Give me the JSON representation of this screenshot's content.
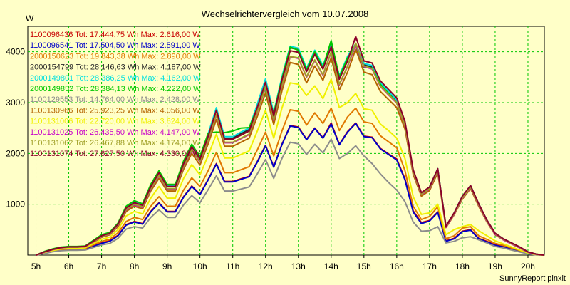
{
  "chart_data": {
    "type": "line",
    "title": "Wechselrichtervergleich vom 10.07.2008",
    "ylabel": "W",
    "xlabel": "",
    "credit": "SunnyReport pinxit",
    "grid": true,
    "legend_position": "top-left",
    "xlim": [
      4.75,
      20.5
    ],
    "ylim": [
      0,
      4500
    ],
    "x_ticks": [
      5,
      6,
      7,
      8,
      9,
      10,
      11,
      12,
      13,
      14,
      15,
      16,
      17,
      18,
      19,
      20
    ],
    "x_tick_labels": [
      "5h",
      "6h",
      "7h",
      "8h",
      "9h",
      "10h",
      "11h",
      "12h",
      "13h",
      "14h",
      "15h",
      "16h",
      "17h",
      "18h",
      "19h",
      "20h"
    ],
    "y_ticks": [
      1000,
      2000,
      3000,
      4000
    ],
    "y_tick_labels": [
      "1000",
      "2000",
      "3000",
      "4000"
    ],
    "x": [
      5.0,
      5.25,
      5.5,
      5.75,
      6.0,
      6.25,
      6.5,
      6.75,
      7.0,
      7.25,
      7.5,
      7.75,
      8.0,
      8.25,
      8.5,
      8.75,
      9.0,
      9.25,
      9.5,
      9.75,
      10.0,
      10.25,
      10.5,
      10.75,
      11.0,
      11.25,
      11.5,
      11.75,
      12.0,
      12.25,
      12.5,
      12.75,
      13.0,
      13.25,
      13.5,
      13.75,
      14.0,
      14.25,
      14.5,
      14.75,
      15.0,
      15.25,
      15.5,
      15.75,
      16.0,
      16.25,
      16.5,
      16.75,
      17.0,
      17.25,
      17.5,
      17.75,
      18.0,
      18.25,
      18.5,
      18.75,
      19.0,
      19.25,
      19.5,
      19.75,
      20.0,
      20.25,
      20.5
    ],
    "series": [
      {
        "name": "1100096436 Tot: 17.444,75 Wh Max: 2.616,00 W",
        "color": "#c80000",
        "values": [
          0,
          40,
          80,
          100,
          110,
          110,
          120,
          180,
          240,
          280,
          390,
          600,
          660,
          620,
          860,
          1030,
          860,
          860,
          1150,
          1360,
          1200,
          1490,
          1800,
          1450,
          1450,
          1500,
          1550,
          1840,
          2160,
          1740,
          2180,
          2550,
          2520,
          2280,
          2500,
          2310,
          2600,
          2180,
          2430,
          2600,
          2340,
          2320,
          2100,
          1990,
          1890,
          1500,
          870,
          640,
          680,
          850,
          280,
          330,
          470,
          500,
          330,
          270,
          200,
          170,
          120,
          80,
          30,
          10,
          0
        ]
      },
      {
        "name": "1100096541 Tot: 17.504,50 Wh Max: 2.591,00 W",
        "color": "#0000c8",
        "values": [
          0,
          35,
          75,
          95,
          105,
          105,
          115,
          170,
          230,
          270,
          380,
          590,
          650,
          610,
          850,
          1020,
          850,
          850,
          1140,
          1350,
          1190,
          1480,
          1790,
          1440,
          1440,
          1490,
          1540,
          1830,
          2150,
          1730,
          2170,
          2540,
          2510,
          2270,
          2490,
          2300,
          2580,
          2170,
          2420,
          2590,
          2330,
          2310,
          2090,
          1980,
          1870,
          1480,
          850,
          620,
          670,
          840,
          270,
          320,
          460,
          490,
          320,
          260,
          190,
          160,
          110,
          70,
          25,
          5,
          0
        ]
      },
      {
        "name": "2000150623 Tot: 19.843,38 Wh Max: 2.890,00 W",
        "color": "#e07800",
        "values": [
          0,
          45,
          85,
          110,
          120,
          120,
          130,
          200,
          270,
          310,
          440,
          660,
          740,
          700,
          960,
          1150,
          960,
          960,
          1280,
          1520,
          1350,
          1660,
          2020,
          1620,
          1620,
          1680,
          1740,
          2070,
          2420,
          1950,
          2440,
          2860,
          2830,
          2560,
          2800,
          2590,
          2890,
          2450,
          2720,
          2890,
          2620,
          2590,
          2350,
          2230,
          2110,
          1660,
          960,
          700,
          760,
          950,
          320,
          380,
          530,
          560,
          380,
          310,
          230,
          190,
          140,
          90,
          35,
          10,
          0
        ]
      },
      {
        "name": "2000154799 Tot: 28.146,63 Wh Max: 4.187,00 W",
        "color": "#282828",
        "values": [
          0,
          60,
          110,
          145,
          160,
          160,
          170,
          270,
          380,
          430,
          610,
          930,
          1040,
          980,
          1360,
          1630,
          1360,
          1360,
          1820,
          2150,
          1910,
          2360,
          2870,
          2300,
          2300,
          2390,
          2470,
          2940,
          3440,
          2770,
          3480,
          4080,
          4040,
          3650,
          4000,
          3700,
          4180,
          3500,
          3880,
          4140,
          3740,
          3700,
          3360,
          3190,
          3020,
          2580,
          1650,
          1200,
          1320,
          1680,
          560,
          820,
          1150,
          1360,
          1000,
          680,
          420,
          310,
          230,
          150,
          60,
          20,
          0
        ]
      },
      {
        "name": "2000149801 Tot: 28.386,25 Wh Max: 4.162,00 W",
        "color": "#00e0e0",
        "values": [
          0,
          65,
          115,
          150,
          165,
          165,
          175,
          280,
          390,
          440,
          620,
          950,
          1060,
          1000,
          1380,
          1650,
          1380,
          1380,
          1840,
          2170,
          1930,
          2390,
          2900,
          2330,
          2330,
          2420,
          2500,
          2970,
          3470,
          2800,
          3510,
          4110,
          4070,
          3680,
          4030,
          3730,
          4160,
          3530,
          3910,
          4160,
          3770,
          3730,
          3390,
          3220,
          3050,
          2600,
          1670,
          1220,
          1340,
          1700,
          570,
          830,
          1160,
          1370,
          1010,
          690,
          430,
          320,
          240,
          160,
          65,
          20,
          0
        ]
      },
      {
        "name": "2000149852 Tot: 28.384,13 Wh Max: 4.222,00 W",
        "color": "#00c800",
        "values": [
          0,
          70,
          120,
          155,
          170,
          170,
          180,
          290,
          400,
          450,
          630,
          960,
          1070,
          1010,
          1390,
          1660,
          1390,
          1390,
          1850,
          2180,
          1940,
          2400,
          2420,
          2410,
          2440,
          2500,
          2510,
          2900,
          3300,
          2780,
          3470,
          4090,
          4030,
          3650,
          4000,
          3690,
          4220,
          3500,
          3880,
          4120,
          3700,
          3680,
          3360,
          3180,
          3000,
          2560,
          1640,
          1200,
          1320,
          1680,
          550,
          820,
          1130,
          1340,
          990,
          670,
          420,
          310,
          230,
          150,
          60,
          20,
          0
        ]
      },
      {
        "name": "1100129553 Tot: 14.764,00 Wh Max: 2.428,00 W",
        "color": "#8c8c8c",
        "values": [
          0,
          30,
          65,
          85,
          95,
          95,
          100,
          150,
          200,
          230,
          330,
          510,
          560,
          530,
          740,
          890,
          740,
          740,
          990,
          1170,
          1030,
          1290,
          1560,
          1260,
          1260,
          1300,
          1340,
          1600,
          1880,
          1510,
          1900,
          2220,
          2190,
          1980,
          2180,
          2010,
          2280,
          1900,
          2000,
          2150,
          1950,
          1800,
          1600,
          1430,
          1280,
          1050,
          650,
          470,
          480,
          560,
          240,
          270,
          340,
          360,
          300,
          240,
          170,
          140,
          100,
          60,
          25,
          5,
          0
        ]
      },
      {
        "name": "1100130966 Tot: 25.923,25 Wh Max: 4.056,00 W",
        "color": "#b46400",
        "values": [
          0,
          55,
          100,
          135,
          150,
          150,
          160,
          250,
          350,
          400,
          560,
          860,
          960,
          910,
          1260,
          1510,
          1260,
          1260,
          1690,
          2000,
          1770,
          2190,
          2670,
          2140,
          2140,
          2220,
          2300,
          2730,
          3190,
          2570,
          3230,
          3790,
          3750,
          3390,
          3720,
          3440,
          3880,
          3250,
          3600,
          4050,
          3600,
          3550,
          3220,
          3060,
          2900,
          2480,
          1590,
          1160,
          1270,
          1620,
          540,
          790,
          1100,
          1310,
          960,
          650,
          400,
          300,
          220,
          140,
          55,
          15,
          0
        ]
      },
      {
        "name": "1100131006 Tot: 22.720,00 Wh Max: 3.624,00 W",
        "color": "#f0f000",
        "values": [
          0,
          50,
          90,
          120,
          135,
          135,
          145,
          225,
          310,
          355,
          500,
          770,
          860,
          810,
          1120,
          1350,
          1120,
          1120,
          1510,
          1780,
          1580,
          1960,
          2380,
          1910,
          1910,
          1980,
          2050,
          2440,
          2850,
          2300,
          2890,
          3390,
          3360,
          3140,
          3330,
          3080,
          3460,
          2900,
          3000,
          3180,
          2880,
          2850,
          2580,
          2450,
          2300,
          1900,
          1150,
          800,
          830,
          1000,
          400,
          500,
          560,
          600,
          480,
          380,
          280,
          220,
          160,
          100,
          40,
          10,
          0
        ]
      },
      {
        "name": "1100131025 Tot: 26.435,50 Wh Max: 4.147,00 W",
        "color": "#c800c8",
        "values": [
          0,
          58,
          105,
          140,
          155,
          155,
          165,
          260,
          360,
          410,
          580,
          890,
          990,
          940,
          1300,
          1560,
          1300,
          1300,
          1740,
          2060,
          1830,
          2260,
          2760,
          2210,
          2210,
          2290,
          2370,
          2820,
          3290,
          2650,
          3330,
          3900,
          3870,
          3500,
          3830,
          3540,
          3990,
          3350,
          3710,
          4140,
          3710,
          3660,
          3320,
          3150,
          2990,
          2550,
          1630,
          1190,
          1300,
          1660,
          550,
          800,
          1120,
          1330,
          980,
          660,
          410,
          300,
          220,
          140,
          55,
          15,
          0
        ]
      },
      {
        "name": "1100131062 Tot: 26.467,88 Wh Max: 4.174,00 W",
        "color": "#a0a028",
        "values": [
          0,
          60,
          108,
          142,
          158,
          158,
          168,
          265,
          365,
          415,
          590,
          900,
          1000,
          950,
          1310,
          1570,
          1310,
          1310,
          1750,
          2070,
          1840,
          2270,
          2770,
          2220,
          2220,
          2300,
          2380,
          2830,
          3300,
          2660,
          3340,
          3910,
          3880,
          3510,
          3840,
          3550,
          4000,
          3360,
          3720,
          4170,
          3720,
          3670,
          3330,
          3160,
          3000,
          2560,
          1640,
          1200,
          1310,
          1670,
          560,
          810,
          1130,
          1340,
          990,
          670,
          420,
          310,
          230,
          150,
          60,
          20,
          0
        ]
      },
      {
        "name": "1100131074 Tot: 27.627,50 Wh Max: 4.330,00 W",
        "color": "#8c0028",
        "values": [
          0,
          62,
          112,
          147,
          163,
          163,
          173,
          275,
          380,
          430,
          610,
          930,
          1030,
          980,
          1350,
          1620,
          1350,
          1350,
          1800,
          2130,
          1890,
          2340,
          2850,
          2280,
          2280,
          2360,
          2440,
          2910,
          3400,
          2740,
          3440,
          4020,
          3990,
          3610,
          3950,
          3660,
          4100,
          3460,
          3820,
          4300,
          3820,
          3780,
          3430,
          3260,
          3090,
          2630,
          1680,
          1230,
          1340,
          1700,
          570,
          830,
          1160,
          1370,
          1010,
          690,
          430,
          320,
          240,
          160,
          65,
          20,
          0
        ]
      }
    ]
  }
}
